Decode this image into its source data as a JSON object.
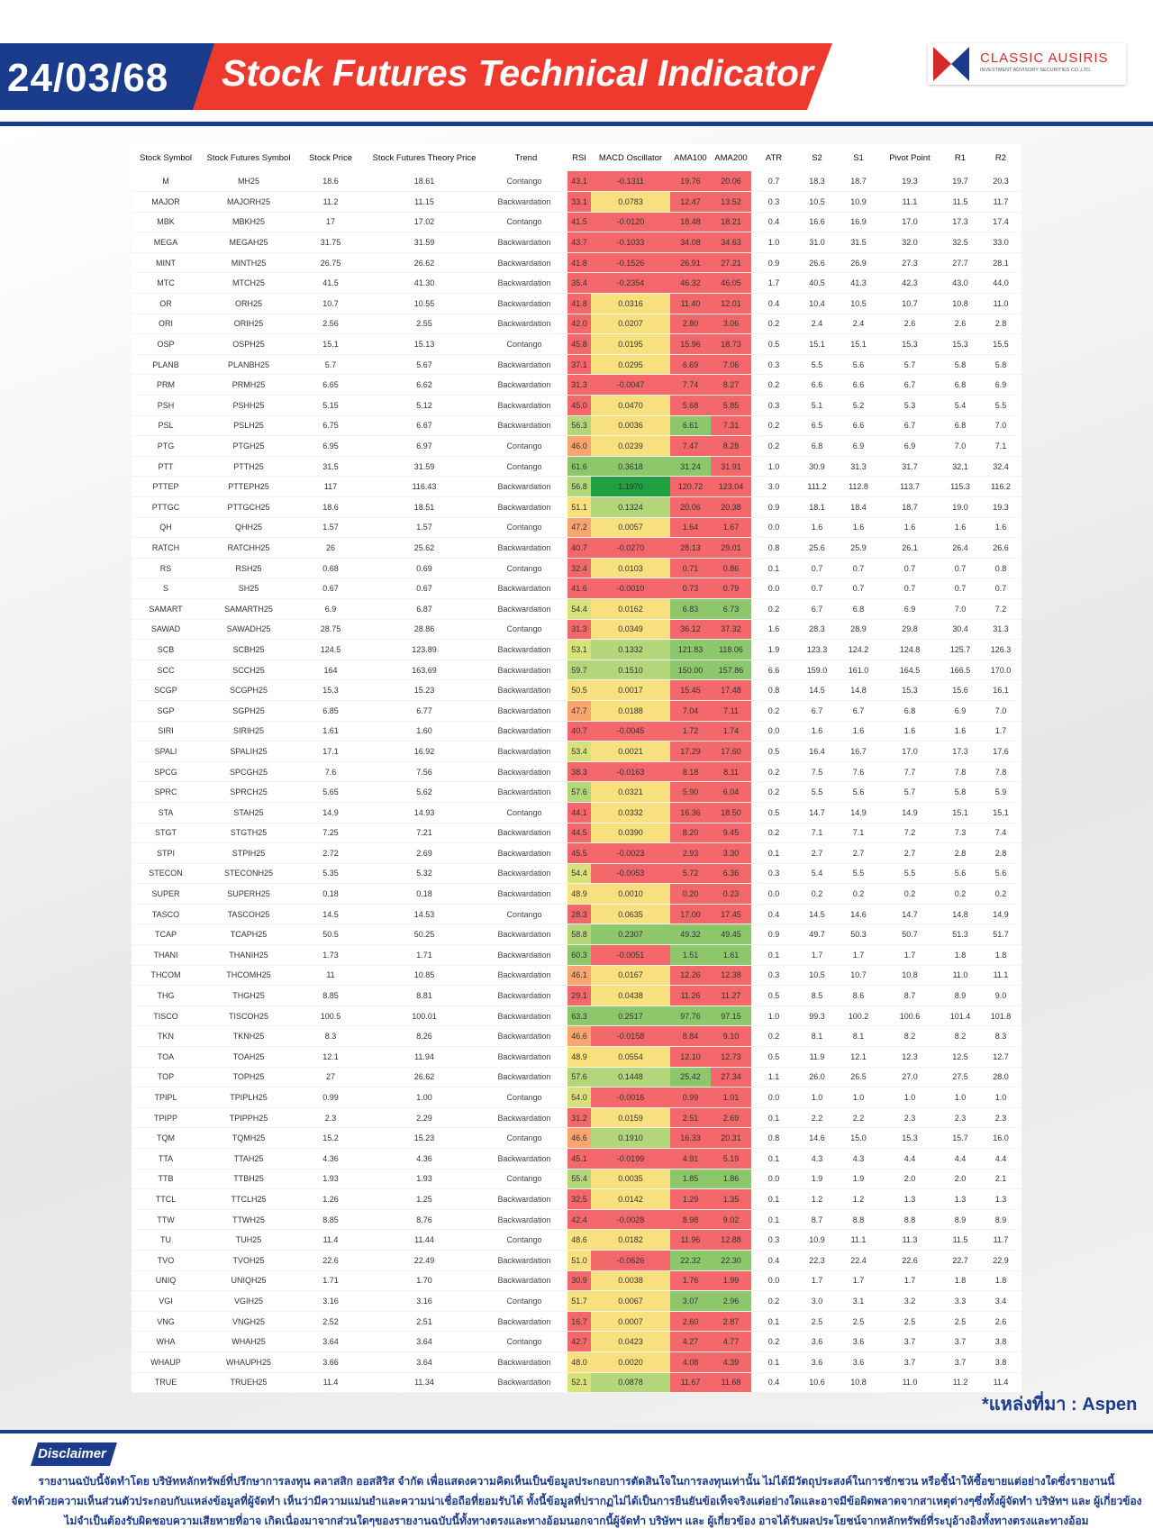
{
  "header": {
    "date": "24/03/68",
    "title": "Stock Futures Technical Indicator",
    "logo_name": "CLASSIC AUSIRIS",
    "logo_sub": "INVESTMENT ADVISORY SECURITIES CO.,LTD."
  },
  "columns": [
    "Stock Symbol",
    "Stock Futures Symbol",
    "Stock Price",
    "Stock Futures Theory Price",
    "Trend",
    "RSI",
    "MACD Oscillator",
    "AMA100",
    "AMA200",
    "ATR",
    "S2",
    "S1",
    "Pivot Point",
    "R1",
    "R2"
  ],
  "colors": {
    "red": "#f4676a",
    "orange": "#f9a56f",
    "yellow": "#f8e07e",
    "yellow_green": "#d8e27a",
    "light_green": "#b4d67a",
    "green": "#8cc86b",
    "dark_green": "#1f9f40"
  },
  "rows": [
    [
      "M",
      "MH25",
      "18.6",
      "18.61",
      "Contango",
      "43.1",
      "-0.1311",
      "19.76",
      "20.06",
      "0.7",
      "18.3",
      "18.7",
      "19.3",
      "19.7",
      "20.3"
    ],
    [
      "MAJOR",
      "MAJORH25",
      "11.2",
      "11.15",
      "Backwardation",
      "33.1",
      "0.0783",
      "12.47",
      "13.52",
      "0.3",
      "10.5",
      "10.9",
      "11.1",
      "11.5",
      "11.7"
    ],
    [
      "MBK",
      "MBKH25",
      "17",
      "17.02",
      "Contango",
      "41.5",
      "-0.0120",
      "18.48",
      "18.21",
      "0.4",
      "16.6",
      "16.9",
      "17.0",
      "17.3",
      "17.4"
    ],
    [
      "MEGA",
      "MEGAH25",
      "31.75",
      "31.59",
      "Backwardation",
      "43.7",
      "-0.1033",
      "34.08",
      "34.63",
      "1.0",
      "31.0",
      "31.5",
      "32.0",
      "32.5",
      "33.0"
    ],
    [
      "MINT",
      "MINTH25",
      "26.75",
      "26.62",
      "Backwardation",
      "41.8",
      "-0.1526",
      "26.91",
      "27.21",
      "0.9",
      "26.6",
      "26.9",
      "27.3",
      "27.7",
      "28.1"
    ],
    [
      "MTC",
      "MTCH25",
      "41.5",
      "41.30",
      "Backwardation",
      "35.4",
      "-0.2354",
      "46.32",
      "46.05",
      "1.7",
      "40.5",
      "41.3",
      "42.3",
      "43.0",
      "44.0"
    ],
    [
      "OR",
      "ORH25",
      "10.7",
      "10.55",
      "Backwardation",
      "41.8",
      "0.0316",
      "11.40",
      "12.01",
      "0.4",
      "10.4",
      "10.5",
      "10.7",
      "10.8",
      "11.0"
    ],
    [
      "ORI",
      "ORIH25",
      "2.56",
      "2.55",
      "Backwardation",
      "42.0",
      "0.0207",
      "2.80",
      "3.06",
      "0.2",
      "2.4",
      "2.4",
      "2.6",
      "2.6",
      "2.8"
    ],
    [
      "OSP",
      "OSPH25",
      "15.1",
      "15.13",
      "Contango",
      "45.8",
      "0.0195",
      "15.96",
      "18.73",
      "0.5",
      "15.1",
      "15.1",
      "15.3",
      "15.3",
      "15.5"
    ],
    [
      "PLANB",
      "PLANBH25",
      "5.7",
      "5.67",
      "Backwardation",
      "37.1",
      "0.0295",
      "6.69",
      "7.06",
      "0.3",
      "5.5",
      "5.6",
      "5.7",
      "5.8",
      "5.8"
    ],
    [
      "PRM",
      "PRMH25",
      "6.65",
      "6.62",
      "Backwardation",
      "31.3",
      "-0.0047",
      "7.74",
      "8.27",
      "0.2",
      "6.6",
      "6.6",
      "6.7",
      "6.8",
      "6.9"
    ],
    [
      "PSH",
      "PSHH25",
      "5.15",
      "5.12",
      "Backwardation",
      "45.0",
      "0.0470",
      "5.68",
      "5.85",
      "0.3",
      "5.1",
      "5.2",
      "5.3",
      "5.4",
      "5.5"
    ],
    [
      "PSL",
      "PSLH25",
      "6.75",
      "6.67",
      "Backwardation",
      "56.3",
      "0.0036",
      "6.61",
      "7.31",
      "0.2",
      "6.5",
      "6.6",
      "6.7",
      "6.8",
      "7.0"
    ],
    [
      "PTG",
      "PTGH25",
      "6.95",
      "6.97",
      "Contango",
      "46.0",
      "0.0239",
      "7.47",
      "8.28",
      "0.2",
      "6.8",
      "6.9",
      "6.9",
      "7.0",
      "7.1"
    ],
    [
      "PTT",
      "PTTH25",
      "31.5",
      "31.59",
      "Contango",
      "61.6",
      "0.3618",
      "31.24",
      "31.91",
      "1.0",
      "30.9",
      "31.3",
      "31.7",
      "32.1",
      "32.4"
    ],
    [
      "PTTEP",
      "PTTEPH25",
      "117",
      "116.43",
      "Backwardation",
      "56.8",
      "1.1970",
      "120.72",
      "123.04",
      "3.0",
      "111.2",
      "112.8",
      "113.7",
      "115.3",
      "116.2"
    ],
    [
      "PTTGC",
      "PTTGCH25",
      "18.6",
      "18.51",
      "Backwardation",
      "51.1",
      "0.1324",
      "20.06",
      "20.38",
      "0.9",
      "18.1",
      "18.4",
      "18.7",
      "19.0",
      "19.3"
    ],
    [
      "QH",
      "QHH25",
      "1.57",
      "1.57",
      "Contango",
      "47.2",
      "0.0057",
      "1.64",
      "1.67",
      "0.0",
      "1.6",
      "1.6",
      "1.6",
      "1.6",
      "1.6"
    ],
    [
      "RATCH",
      "RATCHH25",
      "26",
      "25.62",
      "Backwardation",
      "40.7",
      "-0.0270",
      "28.13",
      "29.01",
      "0.8",
      "25.6",
      "25.9",
      "26.1",
      "26.4",
      "26.6"
    ],
    [
      "RS",
      "RSH25",
      "0.68",
      "0.69",
      "Contango",
      "32.4",
      "0.0103",
      "0.71",
      "0.86",
      "0.1",
      "0.7",
      "0.7",
      "0.7",
      "0.7",
      "0.8"
    ],
    [
      "S",
      "SH25",
      "0.67",
      "0.67",
      "Backwardation",
      "41.6",
      "-0.0010",
      "0.73",
      "0.79",
      "0.0",
      "0.7",
      "0.7",
      "0.7",
      "0.7",
      "0.7"
    ],
    [
      "SAMART",
      "SAMARTH25",
      "6.9",
      "6.87",
      "Backwardation",
      "54.4",
      "0.0162",
      "6.83",
      "6.73",
      "0.2",
      "6.7",
      "6.8",
      "6.9",
      "7.0",
      "7.2"
    ],
    [
      "SAWAD",
      "SAWADH25",
      "28.75",
      "28.86",
      "Contango",
      "31.3",
      "0.0349",
      "36.12",
      "37.32",
      "1.6",
      "28.3",
      "28.9",
      "29.8",
      "30.4",
      "31.3"
    ],
    [
      "SCB",
      "SCBH25",
      "124.5",
      "123.89",
      "Backwardation",
      "53.1",
      "0.1332",
      "121.83",
      "118.06",
      "1.9",
      "123.3",
      "124.2",
      "124.8",
      "125.7",
      "126.3"
    ],
    [
      "SCC",
      "SCCH25",
      "164",
      "163.69",
      "Backwardation",
      "59.7",
      "0.1510",
      "150.00",
      "157.86",
      "6.6",
      "159.0",
      "161.0",
      "164.5",
      "166.5",
      "170.0"
    ],
    [
      "SCGP",
      "SCGPH25",
      "15.3",
      "15.23",
      "Backwardation",
      "50.5",
      "0.0017",
      "15.45",
      "17.48",
      "0.8",
      "14.5",
      "14.8",
      "15.3",
      "15.6",
      "16.1"
    ],
    [
      "SGP",
      "SGPH25",
      "6.85",
      "6.77",
      "Backwardation",
      "47.7",
      "0.0188",
      "7.04",
      "7.11",
      "0.2",
      "6.7",
      "6.7",
      "6.8",
      "6.9",
      "7.0"
    ],
    [
      "SIRI",
      "SIRIH25",
      "1.61",
      "1.60",
      "Backwardation",
      "40.7",
      "-0.0045",
      "1.72",
      "1.74",
      "0.0",
      "1.6",
      "1.6",
      "1.6",
      "1.6",
      "1.7"
    ],
    [
      "SPALI",
      "SPALIH25",
      "17.1",
      "16.92",
      "Backwardation",
      "53.4",
      "0.0021",
      "17.29",
      "17.60",
      "0.5",
      "16.4",
      "16.7",
      "17.0",
      "17.3",
      "17.6"
    ],
    [
      "SPCG",
      "SPCGH25",
      "7.6",
      "7.56",
      "Backwardation",
      "38.3",
      "-0.0163",
      "8.18",
      "8.11",
      "0.2",
      "7.5",
      "7.6",
      "7.7",
      "7.8",
      "7.8"
    ],
    [
      "SPRC",
      "SPRCH25",
      "5.65",
      "5.62",
      "Backwardation",
      "57.6",
      "0.0321",
      "5.90",
      "6.04",
      "0.2",
      "5.5",
      "5.6",
      "5.7",
      "5.8",
      "5.9"
    ],
    [
      "STA",
      "STAH25",
      "14.9",
      "14.93",
      "Contango",
      "44.1",
      "0.0332",
      "16.36",
      "18.50",
      "0.5",
      "14.7",
      "14.9",
      "14.9",
      "15.1",
      "15.1"
    ],
    [
      "STGT",
      "STGTH25",
      "7.25",
      "7.21",
      "Backwardation",
      "44.5",
      "0.0390",
      "8.20",
      "9.45",
      "0.2",
      "7.1",
      "7.1",
      "7.2",
      "7.3",
      "7.4"
    ],
    [
      "STPI",
      "STPIH25",
      "2.72",
      "2.69",
      "Backwardation",
      "45.5",
      "-0.0023",
      "2.93",
      "3.30",
      "0.1",
      "2.7",
      "2.7",
      "2.7",
      "2.8",
      "2.8"
    ],
    [
      "STECON",
      "STECONH25",
      "5.35",
      "5.32",
      "Backwardation",
      "54.4",
      "-0.0053",
      "5.72",
      "6.36",
      "0.3",
      "5.4",
      "5.5",
      "5.5",
      "5.6",
      "5.6"
    ],
    [
      "SUPER",
      "SUPERH25",
      "0.18",
      "0.18",
      "Backwardation",
      "48.9",
      "0.0010",
      "0.20",
      "0.23",
      "0.0",
      "0.2",
      "0.2",
      "0.2",
      "0.2",
      "0.2"
    ],
    [
      "TASCO",
      "TASCOH25",
      "14.5",
      "14.53",
      "Contango",
      "28.3",
      "0.0635",
      "17.00",
      "17.45",
      "0.4",
      "14.5",
      "14.6",
      "14.7",
      "14.8",
      "14.9"
    ],
    [
      "TCAP",
      "TCAPH25",
      "50.5",
      "50.25",
      "Backwardation",
      "58.8",
      "0.2307",
      "49.32",
      "49.45",
      "0.9",
      "49.7",
      "50.3",
      "50.7",
      "51.3",
      "51.7"
    ],
    [
      "THANI",
      "THANIH25",
      "1.73",
      "1.71",
      "Backwardation",
      "60.3",
      "-0.0051",
      "1.51",
      "1.61",
      "0.1",
      "1.7",
      "1.7",
      "1.7",
      "1.8",
      "1.8"
    ],
    [
      "THCOM",
      "THCOMH25",
      "11",
      "10.85",
      "Backwardation",
      "46.1",
      "0.0167",
      "12.26",
      "12.38",
      "0.3",
      "10.5",
      "10.7",
      "10.8",
      "11.0",
      "11.1"
    ],
    [
      "THG",
      "THGH25",
      "8.85",
      "8.81",
      "Backwardation",
      "29.1",
      "0.0438",
      "11.26",
      "11.27",
      "0.5",
      "8.5",
      "8.6",
      "8.7",
      "8.9",
      "9.0"
    ],
    [
      "TISCO",
      "TISCOH25",
      "100.5",
      "100.01",
      "Backwardation",
      "63.3",
      "0.2517",
      "97.76",
      "97.15",
      "1.0",
      "99.3",
      "100.2",
      "100.6",
      "101.4",
      "101.8"
    ],
    [
      "TKN",
      "TKNH25",
      "8.3",
      "8.26",
      "Backwardation",
      "46.6",
      "-0.0158",
      "8.84",
      "9.10",
      "0.2",
      "8.1",
      "8.1",
      "8.2",
      "8.2",
      "8.3"
    ],
    [
      "TOA",
      "TOAH25",
      "12.1",
      "11.94",
      "Backwardation",
      "48.9",
      "0.0554",
      "12.10",
      "12.73",
      "0.5",
      "11.9",
      "12.1",
      "12.3",
      "12.5",
      "12.7"
    ],
    [
      "TOP",
      "TOPH25",
      "27",
      "26.62",
      "Backwardation",
      "57.6",
      "0.1448",
      "25.42",
      "27.34",
      "1.1",
      "26.0",
      "26.5",
      "27.0",
      "27.5",
      "28.0"
    ],
    [
      "TPIPL",
      "TPIPLH25",
      "0.99",
      "1.00",
      "Contango",
      "54.0",
      "-0.0016",
      "0.99",
      "1.01",
      "0.0",
      "1.0",
      "1.0",
      "1.0",
      "1.0",
      "1.0"
    ],
    [
      "TPIPP",
      "TPIPPH25",
      "2.3",
      "2.29",
      "Backwardation",
      "31.2",
      "0.0159",
      "2.51",
      "2.69",
      "0.1",
      "2.2",
      "2.2",
      "2.3",
      "2.3",
      "2.3"
    ],
    [
      "TQM",
      "TQMH25",
      "15.2",
      "15.23",
      "Contango",
      "46.6",
      "0.1910",
      "16.33",
      "20.31",
      "0.8",
      "14.6",
      "15.0",
      "15.3",
      "15.7",
      "16.0"
    ],
    [
      "TTA",
      "TTAH25",
      "4.36",
      "4.36",
      "Backwardation",
      "45.1",
      "-0.0199",
      "4.91",
      "5.19",
      "0.1",
      "4.3",
      "4.3",
      "4.4",
      "4.4",
      "4.4"
    ],
    [
      "TTB",
      "TTBH25",
      "1.93",
      "1.93",
      "Contango",
      "55.4",
      "0.0035",
      "1.85",
      "1.86",
      "0.0",
      "1.9",
      "1.9",
      "2.0",
      "2.0",
      "2.1"
    ],
    [
      "TTCL",
      "TTCLH25",
      "1.26",
      "1.25",
      "Backwardation",
      "32.5",
      "0.0142",
      "1.29",
      "1.35",
      "0.1",
      "1.2",
      "1.2",
      "1.3",
      "1.3",
      "1.3"
    ],
    [
      "TTW",
      "TTWH25",
      "8.85",
      "8.76",
      "Backwardation",
      "42.4",
      "-0.0028",
      "8.98",
      "9.02",
      "0.1",
      "8.7",
      "8.8",
      "8.8",
      "8.9",
      "8.9"
    ],
    [
      "TU",
      "TUH25",
      "11.4",
      "11.44",
      "Contango",
      "48.6",
      "0.0182",
      "11.96",
      "12.88",
      "0.3",
      "10.9",
      "11.1",
      "11.3",
      "11.5",
      "11.7"
    ],
    [
      "TVO",
      "TVOH25",
      "22.6",
      "22.49",
      "Backwardation",
      "51.0",
      "-0.0626",
      "22.32",
      "22.30",
      "0.4",
      "22.3",
      "22.4",
      "22.6",
      "22.7",
      "22.9"
    ],
    [
      "UNIQ",
      "UNIQH25",
      "1.71",
      "1.70",
      "Backwardation",
      "30.9",
      "0.0038",
      "1.76",
      "1.99",
      "0.0",
      "1.7",
      "1.7",
      "1.7",
      "1.8",
      "1.8"
    ],
    [
      "VGI",
      "VGIH25",
      "3.16",
      "3.16",
      "Contango",
      "51.7",
      "0.0067",
      "3.07",
      "2.96",
      "0.2",
      "3.0",
      "3.1",
      "3.2",
      "3.3",
      "3.4"
    ],
    [
      "VNG",
      "VNGH25",
      "2.52",
      "2.51",
      "Backwardation",
      "16.7",
      "0.0007",
      "2.60",
      "2.87",
      "0.1",
      "2.5",
      "2.5",
      "2.5",
      "2.5",
      "2.6"
    ],
    [
      "WHA",
      "WHAH25",
      "3.64",
      "3.64",
      "Contango",
      "42.7",
      "0.0423",
      "4.27",
      "4.77",
      "0.2",
      "3.6",
      "3.6",
      "3.7",
      "3.7",
      "3.8"
    ],
    [
      "WHAUP",
      "WHAUPH25",
      "3.66",
      "3.64",
      "Backwardation",
      "48.0",
      "0.0020",
      "4.08",
      "4.39",
      "0.1",
      "3.6",
      "3.6",
      "3.7",
      "3.7",
      "3.8"
    ],
    [
      "TRUE",
      "TRUEH25",
      "11.4",
      "11.34",
      "Backwardation",
      "52.1",
      "0.0878",
      "11.67",
      "11.68",
      "0.4",
      "10.6",
      "10.8",
      "11.0",
      "11.2",
      "11.4"
    ]
  ],
  "source": "*แหล่งที่มา : Aspen",
  "disclaimer": {
    "label": "Disclaimer",
    "lines": [
      "รายงานฉบับนี้จัดทำโดย บริษัทหลักทรัพย์ที่ปรึกษาการลงทุน คลาสสิก ออสสิริส จำกัด  เพื่อแสดงความคิดเห็นเป็นข้อมูลประกอบการตัดสินใจในการลงทุนเท่านั้น ไม่ได้มีวัตถุประสงค์ในการชักชวน หรือชี้นำให้ซื้อขายแต่อย่างใดซึ่งรายงานนี้",
      "จัดทำด้วยความเห็นส่วนตัวประกอบกับแหล่งข้อมูลที่ผู้จัดทำ เห็นว่ามีความแม่นยำและความน่าเชื่อถือที่ยอมรับได้  ทั้งนี้ข้อมูลที่ปรากฏไม่ได้เป็นการยืนยันข้อเท็จจริงแต่อย่างใดและอาจมีข้อผิดพลาดจากสาเหตุต่างๆซึ่งทั้งผู้จัดทำ  บริษัทฯ  และ  ผู้เกี่ยวข้อง",
      "ไม่จำเป็นต้องรับผิดชอบความเสียหายที่อาจ เกิดเนื่องมาจากส่วนใดๆของรายงานฉบับนี้ทั้งทางตรงและทางอ้อมนอกจากนี้ผู้จัดทำ บริษัทฯ และ ผู้เกี่ยวข้อง  อาจได้รับผลประโยชน์จากหลักทรัพย์ที่ระบุอ้างอิงทั้งทางตรงและทางอ้อม"
    ]
  }
}
